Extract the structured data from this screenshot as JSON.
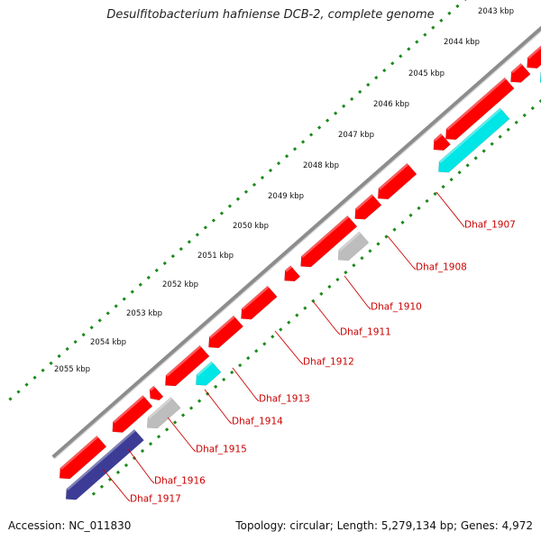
{
  "title": "Desulfitobacterium hafniense DCB-2, complete genome",
  "footer": {
    "accession": "Accession: NC_011830",
    "summary": "Topology: circular; Length: 5,279,134 bp; Genes: 4,972"
  },
  "colors": {
    "background": "#ffffff",
    "backbone": "#8c8c8c",
    "gene_red": "#ff0000",
    "gene_cyan": "#00e5e5",
    "gene_gray": "#bdbdbd",
    "gene_navy": "#3c3c96",
    "tick": "#1a8a1a",
    "label_text": "#cc0000",
    "ruler_text": "#111111"
  },
  "ruler_labels": [
    "2043 kbp",
    "2044 kbp",
    "2045 kbp",
    "2046 kbp",
    "2047 kbp",
    "2048 kbp",
    "2049 kbp",
    "2050 kbp",
    "2051 kbp",
    "2052 kbp",
    "2053 kbp",
    "2054 kbp",
    "2055 kbp"
  ],
  "gene_labels": [
    "Dhaf_1907",
    "Dhaf_1908",
    "Dhaf_1910",
    "Dhaf_1911",
    "Dhaf_1912",
    "Dhaf_1913",
    "Dhaf_1914",
    "Dhaf_1915",
    "Dhaf_1916",
    "Dhaf_1917"
  ]
}
